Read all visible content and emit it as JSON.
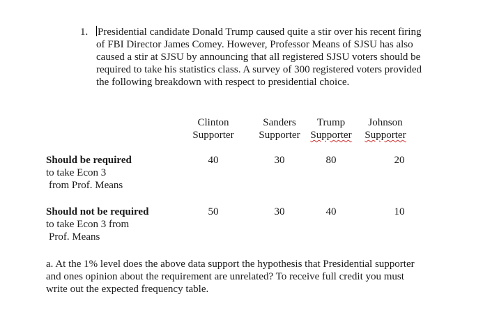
{
  "question": {
    "number": "1.",
    "lines": [
      "Presidential candidate Donald Trump caused quite a stir over his recent firing",
      "of FBI Director James Comey.  However, Professor Means of SJSU has also",
      "caused a stir at SJSU by announcing that all registered SJSU voters should be",
      "required to take his statistics class.  A survey of 300 registered voters provided",
      "the following breakdown with respect to presidential choice."
    ]
  },
  "table": {
    "columns": [
      {
        "line1": "Clinton",
        "line2": "Supporter"
      },
      {
        "line1": "Sanders",
        "line2": "Supporter"
      },
      {
        "line1": "Trump",
        "line2": "Supporter"
      },
      {
        "line1": "Johnson",
        "line2": "Supporter"
      }
    ],
    "rows": [
      {
        "label_bold": "Should be required",
        "label_line2": "to take Econ 3",
        "label_line3": "from Prof. Means",
        "values": [
          "40",
          "30",
          "80",
          "20"
        ]
      },
      {
        "label_bold": "Should not be required",
        "label_line2": "to take Econ 3 from",
        "label_line3": "Prof. Means",
        "values": [
          "50",
          "30",
          "40",
          "10"
        ]
      }
    ]
  },
  "subquestion": {
    "lines": [
      "a.  At the 1% level does the above data support the hypothesis that Presidential supporter",
      "and ones opinion about the requirement are unrelated?  To receive full credit you must",
      "write out the expected frequency table."
    ]
  }
}
